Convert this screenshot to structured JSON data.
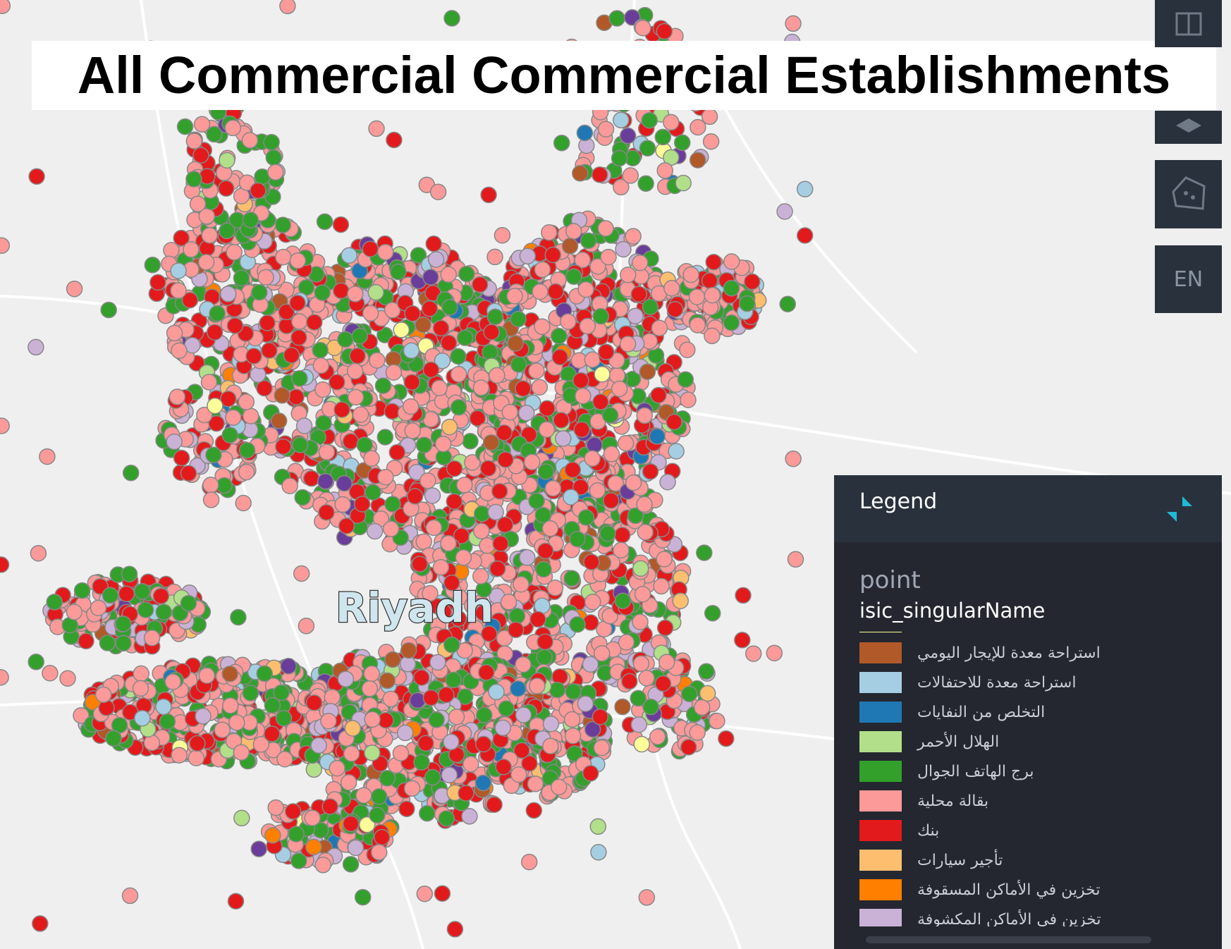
{
  "title": "All Commercial Commercial Establishments",
  "map": {
    "city_label": "Riyadh"
  },
  "toolbar": {
    "language_button": "EN"
  },
  "legend": {
    "header": "Legend",
    "layer": "point",
    "field": "isic_singularName",
    "items": [
      {
        "label": "استراحة معدة للإيجار اليومي",
        "color": "#b15928"
      },
      {
        "label": "استراحة معدة للاحتفالات",
        "color": "#a6cee3"
      },
      {
        "label": "التخلص من النفايات",
        "color": "#1f78b4"
      },
      {
        "label": "الهلال الأحمر",
        "color": "#b2df8a"
      },
      {
        "label": "برج الهاتف الجوال",
        "color": "#33a02c"
      },
      {
        "label": "بقالة محلية",
        "color": "#fb9a99"
      },
      {
        "label": "بنك",
        "color": "#e31a1c"
      },
      {
        "label": "تأجير سيارات",
        "color": "#fdbf6f"
      },
      {
        "label": "تخزين في الأماكن المسقوفة",
        "color": "#ff7f00"
      },
      {
        "label": "تخزين في الأماكن المكشوفة",
        "color": "#cab2d6"
      }
    ]
  }
}
